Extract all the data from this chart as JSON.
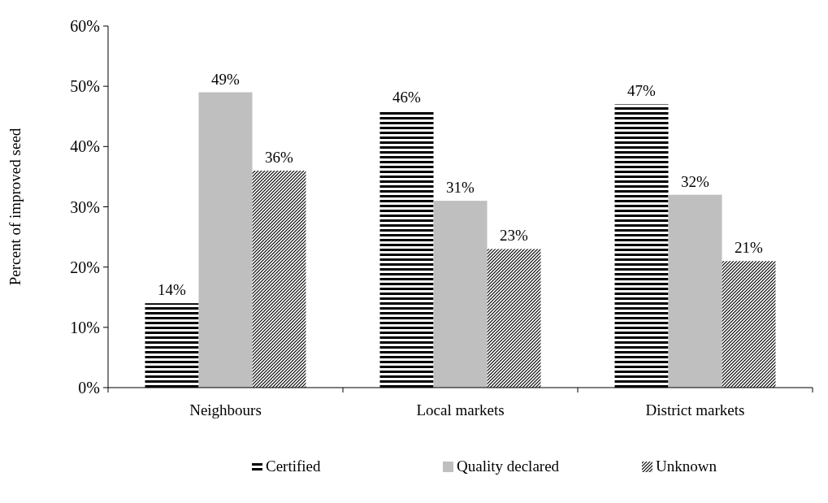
{
  "chart_data": {
    "type": "bar",
    "ylabel": "Percent of improved seed",
    "categories": [
      "Neighbours",
      "Local markets",
      "District markets"
    ],
    "series": [
      {
        "name": "Certified",
        "color": "#000000",
        "values": [
          14,
          46,
          47
        ],
        "value_labels": [
          "14%",
          "46%",
          "47%"
        ]
      },
      {
        "name": "Quality declared",
        "color": "#bfbfbf",
        "values": [
          49,
          31,
          32
        ],
        "value_labels": [
          "49%",
          "31%",
          "32%"
        ]
      },
      {
        "name": "Unknown",
        "color": "#000000",
        "values": [
          36,
          23,
          21
        ],
        "value_labels": [
          "36%",
          "23%",
          "21%"
        ]
      }
    ],
    "ylim": [
      0,
      60
    ],
    "yticks": [
      {
        "value": 0,
        "label": "0%"
      },
      {
        "value": 10,
        "label": "10%"
      },
      {
        "value": 20,
        "label": "20%"
      },
      {
        "value": 30,
        "label": "30%"
      },
      {
        "value": 40,
        "label": "40%"
      },
      {
        "value": 50,
        "label": "50%"
      },
      {
        "value": 60,
        "label": "60%"
      }
    ],
    "grid": false,
    "legend": "bottom"
  }
}
